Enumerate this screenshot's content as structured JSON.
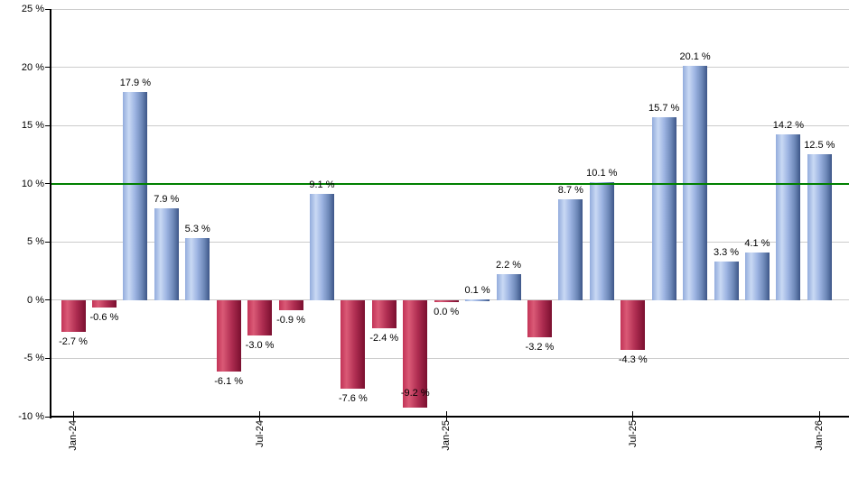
{
  "chart": {
    "background_color": "#ffffff",
    "axis_color": "#000000",
    "grid_color": "#cccccc",
    "text_color": "#000000"
  },
  "chart_data": {
    "type": "bar",
    "title": "",
    "xlabel": "",
    "ylabel": "",
    "ylim": [
      -10,
      25
    ],
    "grid": true,
    "legend_position": "none",
    "y_ticks": [
      {
        "label": "25 %",
        "value": 25
      },
      {
        "label": "20 %",
        "value": 20
      },
      {
        "label": "15 %",
        "value": 15
      },
      {
        "label": "10 %",
        "value": 10
      },
      {
        "label": "5 %",
        "value": 5
      },
      {
        "label": "0 %",
        "value": 0
      },
      {
        "label": "-5 %",
        "value": -5
      },
      {
        "label": "-10 %",
        "value": -10
      }
    ],
    "x_ticks": [
      {
        "label": "Jan-24",
        "bar_index": 0
      },
      {
        "label": "Jul-24",
        "bar_index": 6
      },
      {
        "label": "Jan-25",
        "bar_index": 12
      },
      {
        "label": "Jul-25",
        "bar_index": 18
      },
      {
        "label": "Jan-26",
        "bar_index": 24
      }
    ],
    "reference_line": {
      "value": 10,
      "color": "#008000"
    },
    "bars": [
      {
        "value": -2.7,
        "label": "-2.7 %",
        "color": "red"
      },
      {
        "value": -0.6,
        "label": "-0.6 %",
        "color": "red"
      },
      {
        "value": 17.9,
        "label": "17.9 %",
        "color": "blue"
      },
      {
        "value": 7.9,
        "label": "7.9 %",
        "color": "blue"
      },
      {
        "value": 5.3,
        "label": "5.3 %",
        "color": "blue"
      },
      {
        "value": -6.1,
        "label": "-6.1 %",
        "color": "red"
      },
      {
        "value": -3.0,
        "label": "-3.0 %",
        "color": "red"
      },
      {
        "value": -0.9,
        "label": "-0.9 %",
        "color": "red"
      },
      {
        "value": 9.1,
        "label": "9.1 %",
        "color": "blue"
      },
      {
        "value": -7.6,
        "label": "-7.6 %",
        "color": "red"
      },
      {
        "value": -2.4,
        "label": "-2.4 %",
        "color": "red"
      },
      {
        "value": -9.2,
        "label": "-9.2 %",
        "color": "red"
      },
      {
        "value": 0.0,
        "label": "0.0 %",
        "color": "red"
      },
      {
        "value": 0.1,
        "label": "0.1 %",
        "color": "blue"
      },
      {
        "value": 2.2,
        "label": "2.2 %",
        "color": "blue"
      },
      {
        "value": -3.2,
        "label": "-3.2 %",
        "color": "red"
      },
      {
        "value": 8.7,
        "label": "8.7 %",
        "color": "blue"
      },
      {
        "value": 10.1,
        "label": "10.1 %",
        "color": "blue"
      },
      {
        "value": -4.3,
        "label": "-4.3 %",
        "color": "red"
      },
      {
        "value": 15.7,
        "label": "15.7 %",
        "color": "blue"
      },
      {
        "value": 20.1,
        "label": "20.1 %",
        "color": "blue"
      },
      {
        "value": 3.3,
        "label": "3.3 %",
        "color": "blue"
      },
      {
        "value": 4.1,
        "label": "4.1 %",
        "color": "blue"
      },
      {
        "value": 14.2,
        "label": "14.2 %",
        "color": "blue"
      },
      {
        "value": 12.5,
        "label": "12.5 %",
        "color": "blue"
      }
    ],
    "bar_palette": {
      "blue_gradient": [
        "#93acdc",
        "#c9d9f4",
        "#9db4e2",
        "#6d88b8",
        "#3d5688"
      ],
      "red_gradient": [
        "#c23357",
        "#da5a76",
        "#b02e52",
        "#7a0f2f"
      ]
    }
  }
}
